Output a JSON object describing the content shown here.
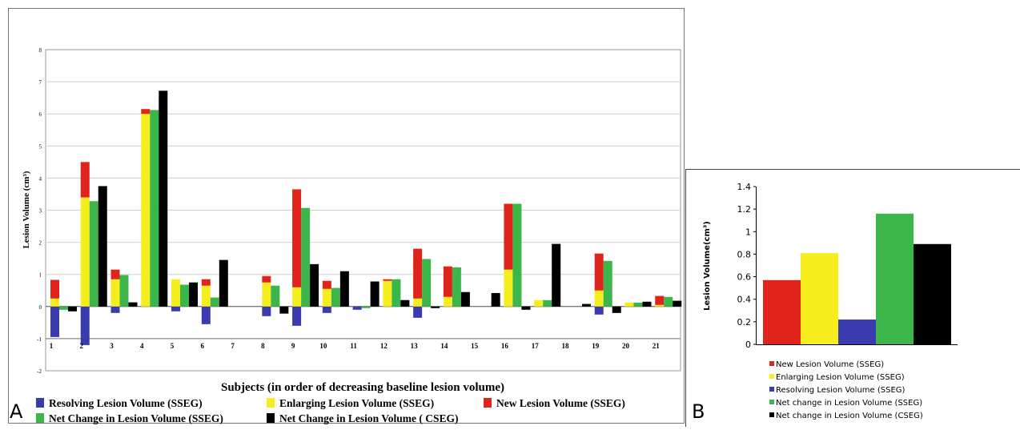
{
  "colors": {
    "resolving": "#3b3bb0",
    "enlarging": "#f5ee1c",
    "new": "#e0241c",
    "net_sseg": "#3cb54a",
    "net_cseg": "#000000"
  },
  "chart_data": [
    {
      "panel": "A",
      "type": "bar",
      "xlabel": "Subjects (in order of decreasing baseline lesion volume)",
      "ylabel": "Lesion Volume (cm³)",
      "ylim": [
        -2,
        8
      ],
      "yticks": [
        "-2",
        "-1",
        "0",
        "1",
        "2",
        "3",
        "4",
        "5",
        "6",
        "7",
        "8"
      ],
      "categories": [
        "1",
        "2",
        "3",
        "4",
        "5",
        "6",
        "7",
        "8",
        "9",
        "10",
        "11",
        "12",
        "13",
        "14",
        "15",
        "16",
        "17",
        "18",
        "19",
        "20",
        "21"
      ],
      "grid": true,
      "legend_position": "bottom",
      "legend": [
        {
          "key": "resolving",
          "label": "Resolving Lesion Volume (SSEG)"
        },
        {
          "key": "enlarging",
          "label": "Enlarging Lesion Volume (SSEG)"
        },
        {
          "key": "new",
          "label": "New Lesion Volume (SSEG)"
        },
        {
          "key": "net_sseg",
          "label": "Net Change in Lesion Volume (SSEG)"
        },
        {
          "key": "net_cseg",
          "label": "Net Change in Lesion Volume ( CSEG)"
        }
      ],
      "series": [
        {
          "key": "resolving",
          "name": "Resolving Lesion Volume (SSEG)",
          "stack": "sseg",
          "values": [
            -0.95,
            -1.2,
            -0.2,
            0,
            -0.15,
            -0.55,
            0,
            -0.3,
            -0.6,
            -0.2,
            -0.1,
            0,
            -0.35,
            0,
            0,
            0,
            0,
            0,
            -0.25,
            0,
            0
          ]
        },
        {
          "key": "enlarging",
          "name": "Enlarging Lesion Volume (SSEG)",
          "stack": "sseg",
          "values": [
            0.25,
            3.4,
            0.85,
            6,
            0.85,
            0.65,
            0,
            0.75,
            0.6,
            0.55,
            0,
            0.8,
            0.25,
            0.3,
            0,
            1.15,
            0.2,
            0,
            0.5,
            0.12,
            0.05
          ]
        },
        {
          "key": "new",
          "name": "New Lesion Volume (SSEG)",
          "stack": "sseg",
          "values": [
            0.58,
            1.1,
            0.3,
            0.15,
            0,
            0.2,
            0,
            0.2,
            3.05,
            0.25,
            0,
            0.05,
            1.55,
            0.95,
            0,
            2.05,
            0,
            0,
            1.15,
            0,
            0.28
          ]
        },
        {
          "key": "net_sseg",
          "name": "Net Change in Lesion Volume (SSEG)",
          "stack": "net",
          "values": [
            -0.1,
            3.28,
            0.98,
            6.12,
            0.68,
            0.28,
            0,
            0.65,
            3.07,
            0.58,
            -0.05,
            0.85,
            1.48,
            1.22,
            0,
            3.2,
            0.2,
            0,
            1.42,
            0.12,
            0.3
          ]
        },
        {
          "key": "net_cseg",
          "name": "Net Change in Lesion Volume ( CSEG)",
          "stack": "cseg",
          "values": [
            -0.15,
            3.75,
            0.13,
            6.72,
            0.75,
            1.45,
            0,
            -0.22,
            1.32,
            1.1,
            0.78,
            0.2,
            -0.05,
            0.45,
            0.42,
            -0.1,
            1.95,
            0.08,
            -0.2,
            0.15,
            0.18
          ]
        }
      ]
    },
    {
      "panel": "B",
      "type": "bar",
      "ylabel": "Lesion Volume(cm³)",
      "ylim": [
        0,
        1.4
      ],
      "yticks": [
        "0",
        "0.2",
        "0.4",
        "0.6",
        "0.8",
        "1",
        "1.2",
        "1.4"
      ],
      "grid": false,
      "legend_position": "bottom",
      "bars": [
        {
          "key": "new",
          "label": "New Lesion Volume (SSEG)",
          "value": 0.57
        },
        {
          "key": "enlarging",
          "label": "Enlarging Lesion Volume (SSEG)",
          "value": 0.81
        },
        {
          "key": "resolving",
          "label": "Resolving Lesion Volume (SSEG)",
          "value": 0.22
        },
        {
          "key": "net_sseg",
          "label": "Net change in Lesion Volume (SSEG)",
          "value": 1.16
        },
        {
          "key": "net_cseg",
          "label": "Net change in Lesion Volume (CSEG)",
          "value": 0.89
        }
      ]
    }
  ],
  "panel_labels": {
    "a": "A",
    "b": "B"
  }
}
